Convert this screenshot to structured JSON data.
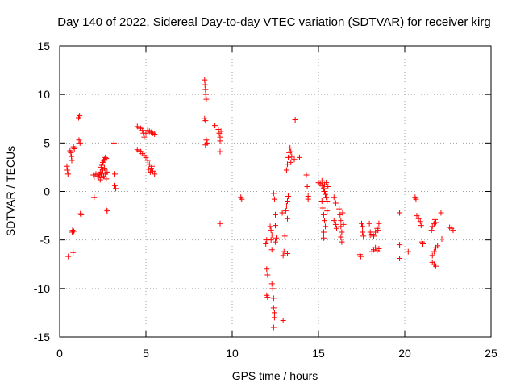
{
  "chart_data": {
    "type": "scatter",
    "title": "Day 140 of 2022, Sidereal Day-to-day VTEC variation (SDTVAR) for receiver kirg",
    "xlabel": "GPS time / hours",
    "ylabel": "SDTVAR / TECUs",
    "xlim": [
      0,
      25
    ],
    "ylim": [
      -15,
      15
    ],
    "xticks": [
      0,
      5,
      10,
      15,
      20,
      25
    ],
    "yticks": [
      -15,
      -10,
      -5,
      0,
      5,
      10,
      15
    ],
    "xtick_labels": [
      "0",
      "5",
      "10",
      "15",
      "20",
      "25"
    ],
    "ytick_labels": [
      "-15",
      "-10",
      "-5",
      "0",
      "5",
      "10",
      "15"
    ],
    "grid": true,
    "marker": "+",
    "series": [
      {
        "name": "SDTVAR",
        "color": "#ff0000",
        "points": [
          [
            0.42,
            2.6
          ],
          [
            0.45,
            2.2
          ],
          [
            0.48,
            1.8
          ],
          [
            0.5,
            -6.7
          ],
          [
            0.6,
            4.2
          ],
          [
            0.65,
            4.0
          ],
          [
            0.68,
            3.6
          ],
          [
            0.7,
            3.2
          ],
          [
            0.72,
            -4.2
          ],
          [
            0.75,
            -4.0
          ],
          [
            0.78,
            -6.3
          ],
          [
            0.8,
            4.6
          ],
          [
            0.82,
            -4.1
          ],
          [
            0.85,
            4.4
          ],
          [
            1.1,
            7.6
          ],
          [
            1.15,
            7.8
          ],
          [
            1.12,
            5.3
          ],
          [
            1.18,
            5.0
          ],
          [
            1.2,
            -2.3
          ],
          [
            1.25,
            -2.4
          ],
          [
            1.95,
            1.7
          ],
          [
            2.0,
            1.5
          ],
          [
            2.0,
            -0.6
          ],
          [
            2.1,
            1.8
          ],
          [
            2.2,
            1.6
          ],
          [
            2.25,
            1.5
          ],
          [
            2.3,
            1.7
          ],
          [
            2.35,
            2.0
          ],
          [
            2.4,
            2.5
          ],
          [
            2.45,
            2.7
          ],
          [
            2.5,
            3.0
          ],
          [
            2.55,
            3.2
          ],
          [
            2.6,
            3.3
          ],
          [
            2.65,
            3.5
          ],
          [
            2.7,
            3.4
          ],
          [
            2.35,
            1.2
          ],
          [
            2.45,
            1.4
          ],
          [
            2.55,
            1.6
          ],
          [
            2.65,
            1.8
          ],
          [
            2.75,
            2.0
          ],
          [
            2.5,
            2.2
          ],
          [
            2.6,
            2.4
          ],
          [
            2.4,
            1.8
          ],
          [
            2.7,
            1.3
          ],
          [
            2.7,
            -1.9
          ],
          [
            2.75,
            -2.0
          ],
          [
            3.15,
            5.0
          ],
          [
            3.2,
            1.8
          ],
          [
            3.2,
            0.6
          ],
          [
            3.25,
            0.3
          ],
          [
            4.5,
            6.7
          ],
          [
            4.6,
            6.6
          ],
          [
            4.7,
            6.5
          ],
          [
            4.8,
            6.3
          ],
          [
            4.85,
            6.0
          ],
          [
            4.9,
            5.6
          ],
          [
            5.0,
            6.0
          ],
          [
            5.1,
            6.3
          ],
          [
            5.2,
            6.2
          ],
          [
            5.3,
            6.1
          ],
          [
            5.4,
            6.0
          ],
          [
            5.5,
            5.9
          ],
          [
            4.5,
            4.3
          ],
          [
            4.6,
            4.2
          ],
          [
            4.7,
            4.1
          ],
          [
            4.8,
            3.9
          ],
          [
            4.9,
            3.7
          ],
          [
            5.0,
            3.5
          ],
          [
            5.1,
            3.2
          ],
          [
            5.2,
            2.8
          ],
          [
            5.3,
            2.4
          ],
          [
            5.4,
            2.1
          ],
          [
            5.5,
            1.8
          ],
          [
            5.15,
            2.3
          ],
          [
            5.25,
            2.0
          ],
          [
            5.35,
            2.6
          ],
          [
            8.4,
            11.5
          ],
          [
            8.42,
            11.0
          ],
          [
            8.45,
            10.5
          ],
          [
            8.47,
            10.0
          ],
          [
            8.5,
            9.5
          ],
          [
            8.4,
            7.5
          ],
          [
            8.45,
            7.3
          ],
          [
            8.5,
            5.3
          ],
          [
            8.55,
            5.0
          ],
          [
            8.45,
            4.8
          ],
          [
            9.0,
            6.8
          ],
          [
            9.2,
            6.4
          ],
          [
            9.25,
            6.0
          ],
          [
            9.3,
            5.6
          ],
          [
            9.3,
            5.2
          ],
          [
            9.35,
            6.2
          ],
          [
            9.3,
            4.1
          ],
          [
            9.3,
            -3.3
          ],
          [
            10.5,
            -0.6
          ],
          [
            10.55,
            -0.8
          ],
          [
            11.95,
            -5.4
          ],
          [
            12.0,
            -5.0
          ],
          [
            12.0,
            -8.0
          ],
          [
            12.05,
            -8.6
          ],
          [
            12.0,
            -10.7
          ],
          [
            12.05,
            -10.9
          ],
          [
            12.2,
            -3.6
          ],
          [
            12.25,
            -4.0
          ],
          [
            12.3,
            -4.5
          ],
          [
            12.25,
            -5.0
          ],
          [
            12.3,
            -6.0
          ],
          [
            12.3,
            -9.5
          ],
          [
            12.35,
            -10.0
          ],
          [
            12.4,
            -11.0
          ],
          [
            12.4,
            -12.0
          ],
          [
            12.45,
            -12.5
          ],
          [
            12.45,
            -13.0
          ],
          [
            12.4,
            -14.0
          ],
          [
            12.4,
            -0.2
          ],
          [
            12.45,
            -0.8
          ],
          [
            12.5,
            -2.4
          ],
          [
            12.5,
            -3.5
          ],
          [
            12.55,
            -4.8
          ],
          [
            12.5,
            -5.2
          ],
          [
            12.9,
            -2.2
          ],
          [
            12.95,
            -6.6
          ],
          [
            13.0,
            -6.2
          ],
          [
            12.95,
            -13.3
          ],
          [
            13.05,
            -4.6
          ],
          [
            13.1,
            -2.0
          ],
          [
            13.15,
            -1.5
          ],
          [
            13.2,
            -1.0
          ],
          [
            13.25,
            -0.5
          ],
          [
            13.2,
            -2.8
          ],
          [
            13.2,
            -6.4
          ],
          [
            13.15,
            2.2
          ],
          [
            13.2,
            2.8
          ],
          [
            13.25,
            3.5
          ],
          [
            13.3,
            4.0
          ],
          [
            13.35,
            4.5
          ],
          [
            13.4,
            4.1
          ],
          [
            13.45,
            3.6
          ],
          [
            13.4,
            3.0
          ],
          [
            13.6,
            3.3
          ],
          [
            13.65,
            7.4
          ],
          [
            13.9,
            3.5
          ],
          [
            14.3,
            1.7
          ],
          [
            14.35,
            0.5
          ],
          [
            14.4,
            -0.5
          ],
          [
            14.4,
            -0.8
          ],
          [
            15.0,
            0.9
          ],
          [
            15.1,
            0.8
          ],
          [
            15.2,
            0.6
          ],
          [
            15.3,
            0.3
          ],
          [
            15.35,
            0.0
          ],
          [
            15.4,
            -0.3
          ],
          [
            15.45,
            -0.6
          ],
          [
            15.5,
            -1.0
          ],
          [
            15.2,
            -1.0
          ],
          [
            15.25,
            -1.7
          ],
          [
            15.3,
            -2.4
          ],
          [
            15.35,
            -3.0
          ],
          [
            15.4,
            -3.6
          ],
          [
            15.3,
            -4.2
          ],
          [
            15.3,
            -4.8
          ],
          [
            15.2,
            1.1
          ],
          [
            15.35,
            0.7
          ],
          [
            15.45,
            0.9
          ],
          [
            15.55,
            0.5
          ],
          [
            15.5,
            -2.0
          ],
          [
            15.9,
            -0.6
          ],
          [
            16.0,
            -1.2
          ],
          [
            15.9,
            -3.0
          ],
          [
            16.0,
            -3.4
          ],
          [
            16.05,
            -3.8
          ],
          [
            16.2,
            -1.8
          ],
          [
            16.25,
            -2.4
          ],
          [
            16.3,
            -3.0
          ],
          [
            16.3,
            -3.6
          ],
          [
            16.35,
            -4.2
          ],
          [
            16.3,
            -4.7
          ],
          [
            16.4,
            -2.2
          ],
          [
            16.45,
            -3.4
          ],
          [
            16.35,
            -5.2
          ],
          [
            17.4,
            -6.5
          ],
          [
            17.45,
            -6.7
          ],
          [
            17.5,
            -3.3
          ],
          [
            17.55,
            -3.6
          ],
          [
            17.55,
            -4.2
          ],
          [
            17.6,
            -4.6
          ],
          [
            17.95,
            -3.3
          ],
          [
            18.0,
            -4.2
          ],
          [
            18.0,
            -4.5
          ],
          [
            18.1,
            -4.4
          ],
          [
            18.2,
            -4.6
          ],
          [
            18.3,
            -4.2
          ],
          [
            18.4,
            -3.8
          ],
          [
            18.5,
            -3.3
          ],
          [
            18.45,
            -4.0
          ],
          [
            18.1,
            -6.2
          ],
          [
            18.2,
            -6.0
          ],
          [
            18.3,
            -5.8
          ],
          [
            18.4,
            -6.1
          ],
          [
            18.5,
            -5.9
          ],
          [
            19.7,
            -2.2
          ],
          [
            19.7,
            -5.5
          ],
          [
            19.7,
            -6.9
          ],
          [
            20.2,
            -6.2
          ],
          [
            20.6,
            -0.6
          ],
          [
            20.65,
            -0.8
          ],
          [
            20.7,
            -2.5
          ],
          [
            20.8,
            -2.8
          ],
          [
            20.9,
            -3.1
          ],
          [
            20.95,
            -3.5
          ],
          [
            21.0,
            -5.2
          ],
          [
            21.05,
            -5.4
          ],
          [
            21.55,
            -4.0
          ],
          [
            21.6,
            -3.6
          ],
          [
            21.7,
            -3.3
          ],
          [
            21.75,
            -2.9
          ],
          [
            21.8,
            -3.2
          ],
          [
            21.6,
            -6.6
          ],
          [
            21.7,
            -6.2
          ],
          [
            21.8,
            -5.8
          ],
          [
            21.9,
            -5.6
          ],
          [
            21.6,
            -7.3
          ],
          [
            21.7,
            -7.5
          ],
          [
            21.8,
            -7.7
          ],
          [
            22.1,
            -2.2
          ],
          [
            22.15,
            -4.9
          ],
          [
            22.6,
            -3.7
          ],
          [
            22.7,
            -3.8
          ],
          [
            22.8,
            -4.0
          ]
        ]
      }
    ]
  }
}
